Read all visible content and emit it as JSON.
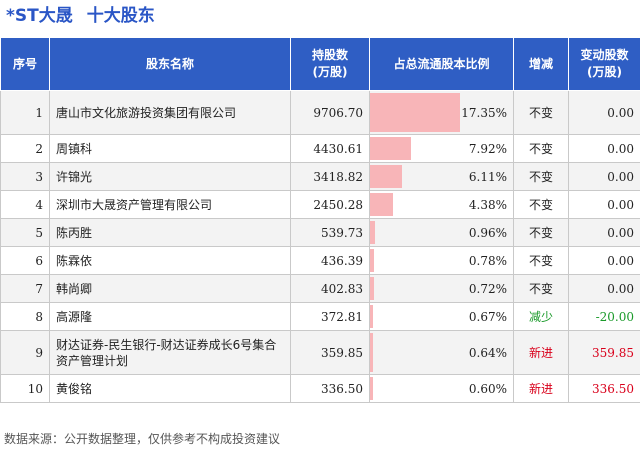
{
  "header": {
    "stock": "*ST大晟",
    "section": "十大股东"
  },
  "table": {
    "columns": [
      "序号",
      "股东名称",
      "持股数\n(万股)",
      "占总流通股本比例",
      "增减",
      "变动股数\n(万股)"
    ],
    "max_ratio": 17.35,
    "rows": [
      {
        "rank": "1",
        "name": "唐山市文化旅游投资集团有限公司",
        "shares": "9706.70",
        "ratio": 17.35,
        "ratio_label": "17.35%",
        "change": "不变",
        "delta": "0.00",
        "color": "#222222",
        "tall": true
      },
      {
        "rank": "2",
        "name": "周镇科",
        "shares": "4430.61",
        "ratio": 7.92,
        "ratio_label": "7.92%",
        "change": "不变",
        "delta": "0.00",
        "color": "#222222",
        "tall": false
      },
      {
        "rank": "3",
        "name": "许锦光",
        "shares": "3418.82",
        "ratio": 6.11,
        "ratio_label": "6.11%",
        "change": "不变",
        "delta": "0.00",
        "color": "#222222",
        "tall": false
      },
      {
        "rank": "4",
        "name": "深圳市大晟资产管理有限公司",
        "shares": "2450.28",
        "ratio": 4.38,
        "ratio_label": "4.38%",
        "change": "不变",
        "delta": "0.00",
        "color": "#222222",
        "tall": false
      },
      {
        "rank": "5",
        "name": "陈丙胜",
        "shares": "539.73",
        "ratio": 0.96,
        "ratio_label": "0.96%",
        "change": "不变",
        "delta": "0.00",
        "color": "#222222",
        "tall": false
      },
      {
        "rank": "6",
        "name": "陈霖依",
        "shares": "436.39",
        "ratio": 0.78,
        "ratio_label": "0.78%",
        "change": "不变",
        "delta": "0.00",
        "color": "#222222",
        "tall": false
      },
      {
        "rank": "7",
        "name": "韩尚卿",
        "shares": "402.83",
        "ratio": 0.72,
        "ratio_label": "0.72%",
        "change": "不变",
        "delta": "0.00",
        "color": "#222222",
        "tall": false
      },
      {
        "rank": "8",
        "name": "高源隆",
        "shares": "372.81",
        "ratio": 0.67,
        "ratio_label": "0.67%",
        "change": "减少",
        "delta": "-20.00",
        "color": "#1a9a2a",
        "tall": false
      },
      {
        "rank": "9",
        "name": "财达证券-民生银行-财达证券成长6号集合资产管理计划",
        "shares": "359.85",
        "ratio": 0.64,
        "ratio_label": "0.64%",
        "change": "新进",
        "delta": "359.85",
        "color": "#d9001b",
        "tall": true
      },
      {
        "rank": "10",
        "name": "黄俊铭",
        "shares": "336.50",
        "ratio": 0.6,
        "ratio_label": "0.60%",
        "change": "新进",
        "delta": "336.50",
        "color": "#d9001b",
        "tall": false
      }
    ]
  },
  "footer": {
    "source": "数据来源：公开数据整理，仅供参考不构成投资建议"
  }
}
